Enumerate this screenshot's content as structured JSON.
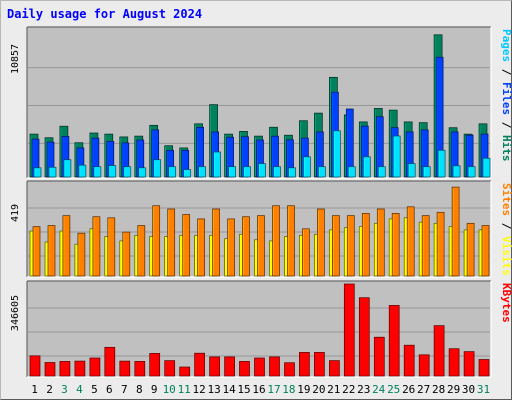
{
  "title": "Daily usage for August 2024",
  "colors": {
    "title": "#0000ff",
    "background": "#ececec",
    "plot_bg": "#c0c0c0",
    "hits": "#00805c",
    "files": "#0040ff",
    "pages": "#00e0ff",
    "visits": "#ffff00",
    "sites": "#ff8000",
    "kbytes": "#ff0000",
    "weekday_label": "#000000",
    "weekend_label": "#00805c"
  },
  "chart_data": [
    {
      "type": "bar",
      "panel": "top",
      "y_max_label": "10857",
      "ylim": [
        0,
        10857
      ],
      "grid": true,
      "right_label_parts": [
        {
          "text": "Pages",
          "color": "#00c8ff"
        },
        {
          "text": " / ",
          "color": "#000000"
        },
        {
          "text": "Files",
          "color": "#0040ff"
        },
        {
          "text": " / ",
          "color": "#000000"
        },
        {
          "text": "Hits",
          "color": "#00805c"
        }
      ],
      "categories": [
        "1",
        "2",
        "3",
        "4",
        "5",
        "6",
        "7",
        "8",
        "9",
        "10",
        "11",
        "12",
        "13",
        "14",
        "15",
        "16",
        "17",
        "18",
        "19",
        "20",
        "21",
        "22",
        "23",
        "24",
        "25",
        "26",
        "27",
        "28",
        "29",
        "30",
        "31"
      ],
      "series": [
        {
          "name": "Hits",
          "values": [
            3170,
            2900,
            3750,
            2530,
            3250,
            3170,
            2960,
            3020,
            3820,
            2310,
            2150,
            3930,
            5350,
            3170,
            3370,
            3020,
            3680,
            3090,
            4160,
            4720,
            7360,
            4590,
            4070,
            5070,
            4940,
            4070,
            4020,
            10500,
            3640,
            3170,
            3930
          ]
        },
        {
          "name": "Files",
          "values": [
            2800,
            2580,
            3000,
            2150,
            2870,
            2640,
            2520,
            2730,
            3480,
            1970,
            1970,
            3670,
            3330,
            2940,
            2980,
            2730,
            3010,
            2750,
            2870,
            3330,
            6260,
            5020,
            3760,
            4450,
            3640,
            3330,
            3480,
            8850,
            3330,
            3090,
            3170
          ]
        },
        {
          "name": "Pages",
          "values": [
            680,
            720,
            1280,
            870,
            760,
            840,
            760,
            680,
            1280,
            760,
            550,
            760,
            1850,
            760,
            760,
            990,
            760,
            680,
            1490,
            760,
            3410,
            760,
            1490,
            760,
            3030,
            990,
            760,
            1970,
            830,
            760,
            1380
          ]
        }
      ]
    },
    {
      "type": "bar",
      "panel": "middle",
      "y_max_label": "419",
      "ylim": [
        0,
        419
      ],
      "grid": true,
      "right_label_parts": [
        {
          "text": "Sites",
          "color": "#ff8000"
        },
        {
          "text": " / ",
          "color": "#000000"
        },
        {
          "text": "Visits",
          "color": "#ffff00"
        }
      ],
      "categories": [
        "1",
        "2",
        "3",
        "4",
        "5",
        "6",
        "7",
        "8",
        "9",
        "10",
        "11",
        "12",
        "13",
        "14",
        "15",
        "16",
        "17",
        "18",
        "19",
        "20",
        "21",
        "22",
        "23",
        "24",
        "25",
        "26",
        "27",
        "28",
        "29",
        "30",
        "31"
      ],
      "series": [
        {
          "name": "Visits",
          "values": [
            205,
            155,
            205,
            145,
            215,
            180,
            160,
            185,
            180,
            180,
            185,
            185,
            185,
            170,
            190,
            165,
            160,
            180,
            185,
            190,
            210,
            220,
            225,
            240,
            260,
            265,
            245,
            240,
            225,
            210,
            210
          ]
        },
        {
          "name": "Sites",
          "values": [
            225,
            230,
            275,
            195,
            270,
            265,
            200,
            230,
            320,
            305,
            280,
            260,
            305,
            260,
            270,
            275,
            320,
            320,
            215,
            305,
            275,
            275,
            285,
            305,
            285,
            315,
            275,
            290,
            405,
            240,
            230
          ]
        }
      ]
    },
    {
      "type": "bar",
      "panel": "bottom",
      "y_max_label": "346605",
      "ylim": [
        0,
        346605
      ],
      "grid": true,
      "right_label_parts": [
        {
          "text": "KBytes",
          "color": "#ff0000"
        }
      ],
      "categories": [
        "1",
        "2",
        "3",
        "4",
        "5",
        "6",
        "7",
        "8",
        "9",
        "10",
        "11",
        "12",
        "13",
        "14",
        "15",
        "16",
        "17",
        "18",
        "19",
        "20",
        "21",
        "22",
        "23",
        "24",
        "25",
        "26",
        "27",
        "28",
        "29",
        "30",
        "31"
      ],
      "series": [
        {
          "name": "KBytes",
          "values": [
            76000,
            51000,
            55000,
            56000,
            68000,
            108000,
            56000,
            55000,
            85000,
            58000,
            34000,
            86000,
            72000,
            72000,
            55000,
            68000,
            72000,
            50000,
            89000,
            89000,
            58000,
            346605,
            295000,
            146000,
            266000,
            116000,
            80000,
            190000,
            103000,
            92000,
            62000
          ]
        }
      ]
    }
  ],
  "x_axis": {
    "labels": [
      "1",
      "2",
      "3",
      "4",
      "5",
      "6",
      "7",
      "8",
      "9",
      "10",
      "11",
      "12",
      "13",
      "14",
      "15",
      "16",
      "17",
      "18",
      "19",
      "20",
      "21",
      "22",
      "23",
      "24",
      "25",
      "26",
      "27",
      "28",
      "29",
      "30",
      "31"
    ],
    "weekend_days": [
      "3",
      "4",
      "10",
      "11",
      "17",
      "18",
      "24",
      "25",
      "31"
    ]
  }
}
